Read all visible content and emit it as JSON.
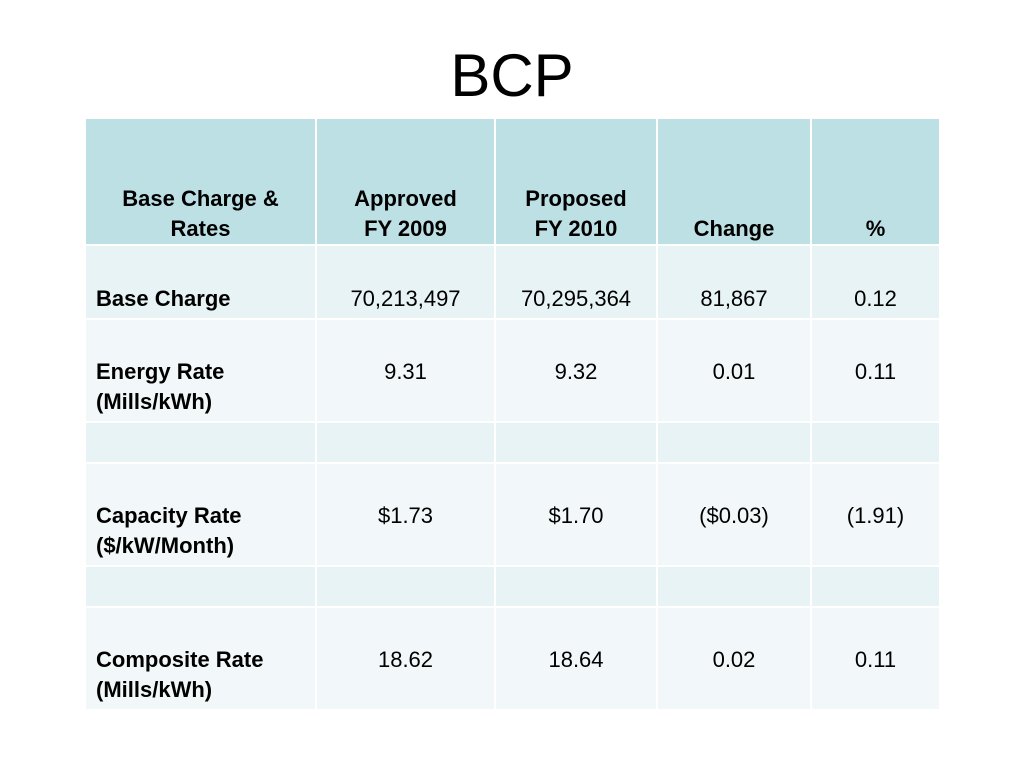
{
  "slide": {
    "title": "BCP"
  },
  "table": {
    "headers": {
      "col1_line1": "Base Charge &",
      "col1_line2": "Rates",
      "col2_line1": "Approved",
      "col2_line2": "FY 2009",
      "col3_line1": "Proposed",
      "col3_line2": "FY 2010",
      "col4": "Change",
      "col5": "%"
    },
    "rows": {
      "base_charge": {
        "label_line1": "Base Charge",
        "approved": "70,213,497",
        "proposed": "70,295,364",
        "change": "81,867",
        "percent": "0.12"
      },
      "energy_rate": {
        "label_line1": "Energy Rate",
        "label_line2": "(Mills/kWh)",
        "approved": "9.31",
        "proposed": "9.32",
        "change": "0.01",
        "percent": "0.11"
      },
      "capacity_rate": {
        "label_line1": "Capacity Rate",
        "label_line2": "($/kW/Month)",
        "approved": "$1.73",
        "proposed": "$1.70",
        "change": "($0.03)",
        "percent": "(1.91)"
      },
      "composite_rate": {
        "label_line1": "Composite Rate",
        "label_line2": "(Mills/kWh)",
        "approved": "18.62",
        "proposed": "18.64",
        "change": "0.02",
        "percent": "0.11"
      }
    }
  }
}
